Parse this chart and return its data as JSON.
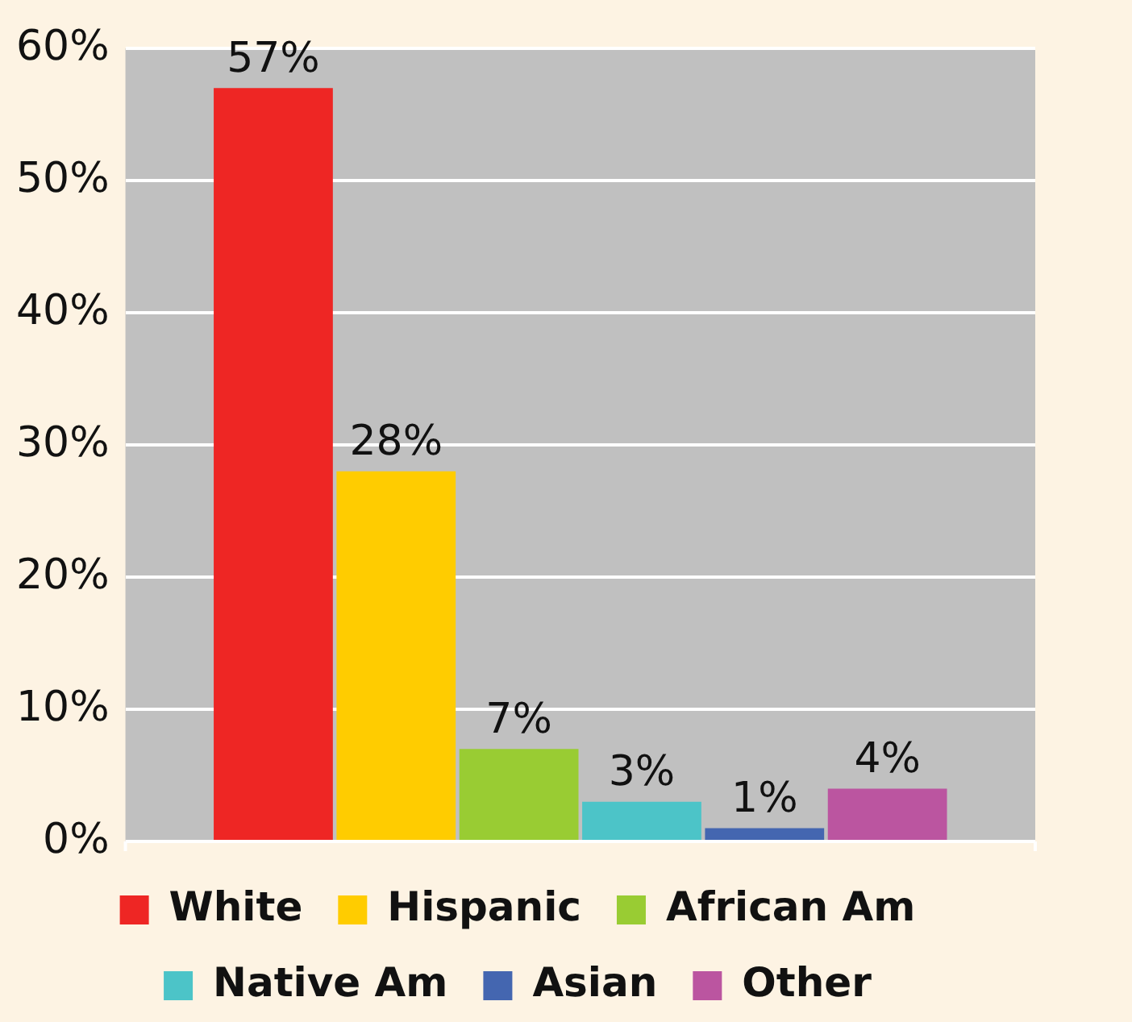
{
  "chart_data": {
    "type": "bar",
    "categories": [
      null
    ],
    "series": [
      {
        "name": "White",
        "color": "#ee2624",
        "values": [
          57
        ],
        "value_labels": [
          "57%"
        ]
      },
      {
        "name": "Hispanic",
        "color": "#ffcc00",
        "values": [
          28
        ],
        "value_labels": [
          "28%"
        ]
      },
      {
        "name": "African Am",
        "color": "#99cc33",
        "values": [
          7
        ],
        "value_labels": [
          "7%"
        ]
      },
      {
        "name": "Native Am",
        "color": "#4cc4c8",
        "values": [
          3
        ],
        "value_labels": [
          "3%"
        ]
      },
      {
        "name": "Asian",
        "color": "#4466b0",
        "values": [
          1
        ],
        "value_labels": [
          "1%"
        ]
      },
      {
        "name": "Other",
        "color": "#bb55a0",
        "values": [
          4
        ],
        "value_labels": [
          "4%"
        ]
      }
    ],
    "ylim": [
      0,
      60
    ],
    "yticks": [
      {
        "value": 0,
        "label": "0%"
      },
      {
        "value": 10,
        "label": "10%"
      },
      {
        "value": 20,
        "label": "20%"
      },
      {
        "value": 30,
        "label": "30%"
      },
      {
        "value": 40,
        "label": "40%"
      },
      {
        "value": 50,
        "label": "50%"
      },
      {
        "value": 60,
        "label": "60%"
      }
    ],
    "tick_labels": "y",
    "grid": "y",
    "legend": "bottom"
  }
}
